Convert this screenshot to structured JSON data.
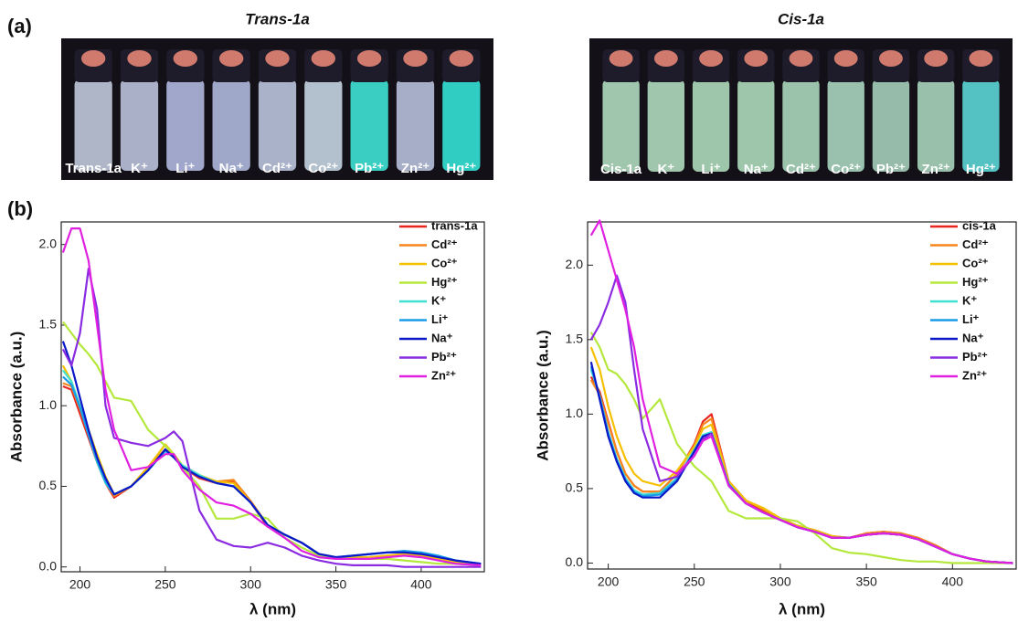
{
  "panel_a": {
    "label": "(a)",
    "photos": [
      {
        "title": "Trans-1a",
        "vials": [
          "Trans-1a",
          "K⁺",
          "Li⁺",
          "Na⁺",
          "Cd²⁺",
          "Co²⁺",
          "Pb²⁺",
          "Zn²⁺",
          "Hg²⁺"
        ]
      },
      {
        "title": "Cis-1a",
        "vials": [
          "Cis-1a",
          "K⁺",
          "Li⁺",
          "Na⁺",
          "Cd²⁺",
          "Co²⁺",
          "Pb²⁺",
          "Zn²⁺",
          "Hg²⁺"
        ]
      }
    ]
  },
  "panel_b": {
    "label": "(b)"
  },
  "chart_data": [
    {
      "type": "line",
      "xlabel": "λ (nm)",
      "ylabel": "Absorbance (a.u.)",
      "xlim": [
        189,
        437
      ],
      "ylim": [
        -0.03,
        2.14
      ],
      "xticks": [
        200,
        250,
        300,
        350,
        400
      ],
      "yticks": [
        {
          "value": 0,
          "label": "0.0"
        },
        0.5,
        {
          "value": 1,
          "label": "1.0"
        },
        1.5,
        {
          "value": 2,
          "label": "2.0"
        }
      ],
      "x": [
        190,
        195,
        200,
        205,
        210,
        215,
        220,
        230,
        240,
        250,
        255,
        260,
        270,
        280,
        290,
        300,
        310,
        320,
        330,
        340,
        350,
        360,
        370,
        380,
        390,
        400,
        410,
        420,
        435
      ],
      "series": [
        {
          "name": "trans-1a",
          "color": "#e8251f",
          "values": [
            1.12,
            1.1,
            0.95,
            0.8,
            0.65,
            0.52,
            0.43,
            0.5,
            0.62,
            0.72,
            0.68,
            0.62,
            0.55,
            0.52,
            0.53,
            0.4,
            0.25,
            0.2,
            0.15,
            0.08,
            0.06,
            0.06,
            0.06,
            0.07,
            0.07,
            0.07,
            0.05,
            0.03,
            0.02
          ]
        },
        {
          "name": "Cd²⁺",
          "color": "#f7861c",
          "values": [
            1.14,
            1.12,
            0.98,
            0.82,
            0.66,
            0.53,
            0.44,
            0.5,
            0.62,
            0.73,
            0.69,
            0.62,
            0.56,
            0.53,
            0.54,
            0.41,
            0.26,
            0.2,
            0.15,
            0.08,
            0.06,
            0.06,
            0.06,
            0.07,
            0.08,
            0.07,
            0.05,
            0.03,
            0.02
          ]
        },
        {
          "name": "Co²⁺",
          "color": "#f5c000",
          "values": [
            1.25,
            1.15,
            1.0,
            0.85,
            0.7,
            0.56,
            0.45,
            0.5,
            0.62,
            0.76,
            0.7,
            0.63,
            0.57,
            0.53,
            0.52,
            0.4,
            0.26,
            0.2,
            0.15,
            0.08,
            0.06,
            0.06,
            0.06,
            0.07,
            0.08,
            0.07,
            0.05,
            0.03,
            0.02
          ]
        },
        {
          "name": "Hg²⁺",
          "color": "#b5e83c",
          "values": [
            1.52,
            1.45,
            1.38,
            1.32,
            1.25,
            1.15,
            1.05,
            1.03,
            0.85,
            0.75,
            0.7,
            0.62,
            0.5,
            0.3,
            0.3,
            0.33,
            0.3,
            0.18,
            0.12,
            0.07,
            0.05,
            0.05,
            0.05,
            0.05,
            0.04,
            0.03,
            0.02,
            0.02,
            0.01
          ]
        },
        {
          "name": "K⁺",
          "color": "#40e0d0",
          "values": [
            1.22,
            1.15,
            1.0,
            0.82,
            0.65,
            0.52,
            0.45,
            0.5,
            0.6,
            0.72,
            0.68,
            0.63,
            0.57,
            0.52,
            0.5,
            0.4,
            0.26,
            0.2,
            0.15,
            0.08,
            0.06,
            0.07,
            0.08,
            0.09,
            0.09,
            0.09,
            0.07,
            0.04,
            0.02
          ]
        },
        {
          "name": "Li⁺",
          "color": "#1a9be8",
          "values": [
            1.18,
            1.13,
            0.99,
            0.82,
            0.66,
            0.53,
            0.45,
            0.5,
            0.6,
            0.72,
            0.68,
            0.62,
            0.56,
            0.52,
            0.5,
            0.4,
            0.26,
            0.2,
            0.15,
            0.08,
            0.06,
            0.07,
            0.08,
            0.09,
            0.1,
            0.09,
            0.07,
            0.04,
            0.02
          ]
        },
        {
          "name": "Na⁺",
          "color": "#0a18c8",
          "values": [
            1.4,
            1.25,
            1.05,
            0.85,
            0.68,
            0.55,
            0.45,
            0.5,
            0.6,
            0.73,
            0.68,
            0.62,
            0.56,
            0.52,
            0.5,
            0.4,
            0.26,
            0.2,
            0.15,
            0.08,
            0.06,
            0.07,
            0.08,
            0.09,
            0.09,
            0.08,
            0.06,
            0.04,
            0.02
          ]
        },
        {
          "name": "Pb²⁺",
          "color": "#8a2be2",
          "values": [
            1.35,
            1.25,
            1.45,
            1.85,
            1.6,
            1.0,
            0.8,
            0.77,
            0.75,
            0.8,
            0.84,
            0.78,
            0.35,
            0.17,
            0.13,
            0.12,
            0.15,
            0.12,
            0.07,
            0.04,
            0.02,
            0.01,
            0.01,
            0.01,
            0.0,
            0.0,
            0.0,
            0.0,
            0.0
          ]
        },
        {
          "name": "Zn²⁺",
          "color": "#e020e0",
          "values": [
            1.95,
            2.1,
            2.1,
            1.9,
            1.5,
            1.1,
            0.85,
            0.6,
            0.62,
            0.7,
            0.7,
            0.6,
            0.48,
            0.4,
            0.38,
            0.33,
            0.25,
            0.18,
            0.1,
            0.06,
            0.05,
            0.05,
            0.05,
            0.06,
            0.07,
            0.06,
            0.04,
            0.02,
            0.01
          ]
        }
      ]
    },
    {
      "type": "line",
      "xlabel": "λ (nm)",
      "ylabel": "Absorbance (a.u.)",
      "xlim": [
        188,
        437
      ],
      "ylim": [
        -0.04,
        2.29
      ],
      "xticks": [
        200,
        250,
        300,
        350,
        400
      ],
      "yticks": [
        {
          "value": 0,
          "label": "0.0"
        },
        0.5,
        {
          "value": 1,
          "label": "1.0"
        },
        1.5,
        {
          "value": 2,
          "label": "2.0"
        }
      ],
      "x": [
        190,
        195,
        200,
        205,
        210,
        215,
        220,
        230,
        240,
        250,
        255,
        260,
        270,
        280,
        290,
        300,
        310,
        320,
        330,
        340,
        350,
        360,
        370,
        380,
        390,
        400,
        410,
        420,
        435
      ],
      "series": [
        {
          "name": "cis-1a",
          "color": "#e8251f",
          "values": [
            1.25,
            1.15,
            0.95,
            0.75,
            0.6,
            0.52,
            0.48,
            0.48,
            0.6,
            0.8,
            0.95,
            1.0,
            0.55,
            0.42,
            0.35,
            0.3,
            0.25,
            0.22,
            0.18,
            0.17,
            0.2,
            0.21,
            0.2,
            0.17,
            0.12,
            0.06,
            0.03,
            0.01,
            0.0
          ]
        },
        {
          "name": "Cd²⁺",
          "color": "#f7861c",
          "values": [
            1.23,
            1.13,
            0.94,
            0.75,
            0.6,
            0.52,
            0.48,
            0.48,
            0.6,
            0.79,
            0.93,
            0.97,
            0.55,
            0.42,
            0.36,
            0.3,
            0.25,
            0.22,
            0.18,
            0.17,
            0.2,
            0.21,
            0.2,
            0.17,
            0.12,
            0.06,
            0.03,
            0.01,
            0.0
          ]
        },
        {
          "name": "Co²⁺",
          "color": "#f5c000",
          "values": [
            1.45,
            1.3,
            1.05,
            0.85,
            0.7,
            0.6,
            0.55,
            0.52,
            0.62,
            0.78,
            0.9,
            0.93,
            0.55,
            0.42,
            0.37,
            0.3,
            0.25,
            0.22,
            0.18,
            0.17,
            0.19,
            0.2,
            0.19,
            0.16,
            0.11,
            0.06,
            0.03,
            0.01,
            0.0
          ]
        },
        {
          "name": "Hg²⁺",
          "color": "#b5e83c",
          "values": [
            1.55,
            1.45,
            1.3,
            1.27,
            1.2,
            1.1,
            0.97,
            1.1,
            0.8,
            0.65,
            0.6,
            0.55,
            0.35,
            0.3,
            0.3,
            0.3,
            0.28,
            0.2,
            0.1,
            0.07,
            0.06,
            0.04,
            0.02,
            0.01,
            0.01,
            0.0,
            0.0,
            0.0,
            0.0
          ]
        },
        {
          "name": "K⁺",
          "color": "#40e0d0",
          "values": [
            1.3,
            1.12,
            0.88,
            0.7,
            0.57,
            0.49,
            0.46,
            0.47,
            0.57,
            0.76,
            0.86,
            0.88,
            0.53,
            0.4,
            0.34,
            0.29,
            0.24,
            0.21,
            0.17,
            0.17,
            0.19,
            0.2,
            0.19,
            0.16,
            0.11,
            0.06,
            0.03,
            0.01,
            0.0
          ]
        },
        {
          "name": "Li⁺",
          "color": "#1a9be8",
          "values": [
            1.32,
            1.12,
            0.87,
            0.69,
            0.56,
            0.48,
            0.45,
            0.46,
            0.56,
            0.75,
            0.85,
            0.87,
            0.53,
            0.4,
            0.34,
            0.29,
            0.24,
            0.21,
            0.17,
            0.17,
            0.19,
            0.2,
            0.19,
            0.16,
            0.11,
            0.06,
            0.03,
            0.01,
            0.0
          ]
        },
        {
          "name": "Na⁺",
          "color": "#0a18c8",
          "values": [
            1.35,
            1.1,
            0.85,
            0.68,
            0.55,
            0.47,
            0.44,
            0.44,
            0.55,
            0.75,
            0.85,
            0.87,
            0.52,
            0.4,
            0.34,
            0.29,
            0.24,
            0.21,
            0.17,
            0.17,
            0.19,
            0.2,
            0.19,
            0.16,
            0.11,
            0.06,
            0.03,
            0.01,
            0.0
          ]
        },
        {
          "name": "Pb²⁺",
          "color": "#8a2be2",
          "values": [
            1.5,
            1.6,
            1.75,
            1.93,
            1.75,
            1.3,
            0.9,
            0.55,
            0.58,
            0.72,
            0.83,
            0.87,
            0.52,
            0.4,
            0.34,
            0.29,
            0.24,
            0.21,
            0.17,
            0.17,
            0.19,
            0.2,
            0.19,
            0.16,
            0.11,
            0.06,
            0.03,
            0.01,
            0.0
          ]
        },
        {
          "name": "Zn²⁺",
          "color": "#e020e0",
          "values": [
            2.2,
            2.3,
            2.1,
            1.9,
            1.7,
            1.45,
            1.1,
            0.65,
            0.6,
            0.72,
            0.82,
            0.85,
            0.52,
            0.4,
            0.34,
            0.29,
            0.24,
            0.21,
            0.17,
            0.17,
            0.19,
            0.2,
            0.19,
            0.16,
            0.11,
            0.06,
            0.03,
            0.01,
            0.0
          ]
        }
      ]
    }
  ]
}
